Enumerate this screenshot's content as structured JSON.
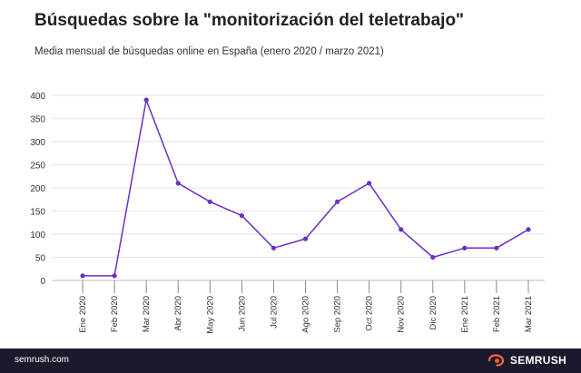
{
  "header": {
    "title": "Búsquedas sobre la \"monitorización del teletrabajo\"",
    "subtitle": "Media mensual de búsquedas online en España (enero 2020 / marzo 2021)"
  },
  "chart_data": {
    "type": "line",
    "title": "Búsquedas sobre la \"monitorización del teletrabajo\"",
    "subtitle": "Media mensual de búsquedas online en España (enero 2020 / marzo 2021)",
    "categories": [
      "Ene 2020",
      "Feb 2020",
      "Mar 2020",
      "Abr 2020",
      "May 2020",
      "Jun 2020",
      "Jul 2020",
      "Ago 2020",
      "Sep 2020",
      "Oct 2020",
      "Nov 2020",
      "Dic 2020",
      "Ene 2021",
      "Feb 2021",
      "Mar 2021"
    ],
    "series": [
      {
        "name": "Búsquedas",
        "values": [
          10,
          10,
          390,
          210,
          170,
          140,
          70,
          90,
          170,
          210,
          110,
          50,
          70,
          70,
          110
        ]
      }
    ],
    "yticks": [
      0,
      50,
      100,
      150,
      200,
      250,
      300,
      350,
      400
    ],
    "ylim": [
      0,
      400
    ],
    "xlabel": "",
    "ylabel": "",
    "grid": true,
    "line_color": "#6b2fc7"
  },
  "footer": {
    "url": "semrush.com",
    "brand": "SEMRUSH",
    "brand_color": "#ff642d",
    "icon": "semrush-flame-icon"
  }
}
